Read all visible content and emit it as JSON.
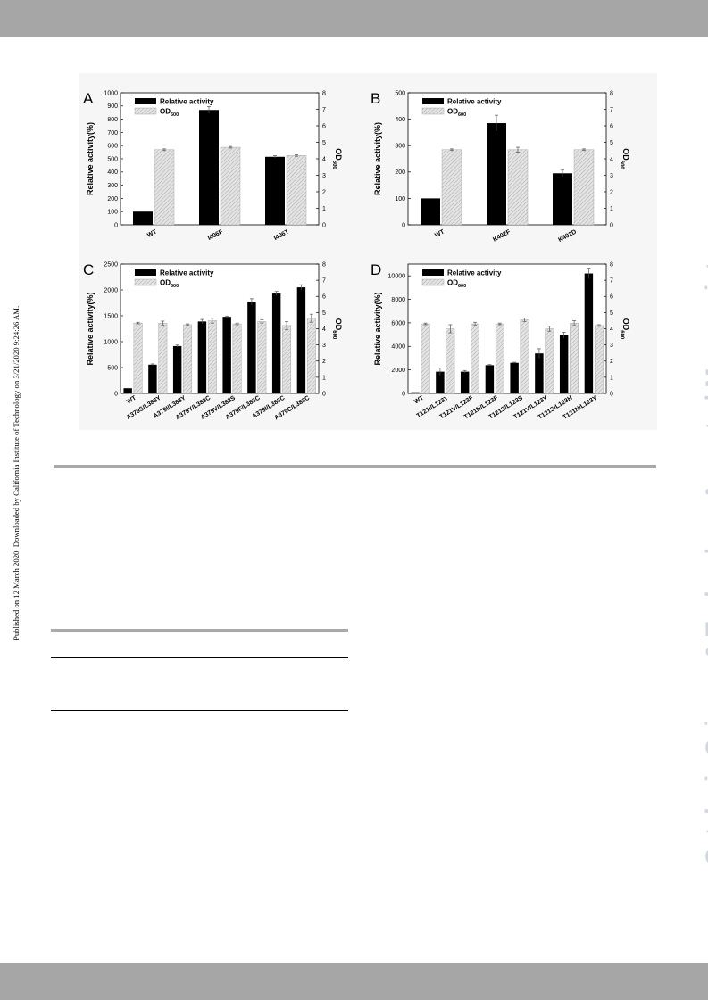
{
  "side_note": "Published on 12 March 2020. Downloaded by California Institute of Technology on 3/21/2020 9:24:26 AM.",
  "watermark": "Catalysis Science & Technology Accepted Manuscript",
  "colors": {
    "bar_primary": "#000000",
    "bar_secondary": "#d9d9d9",
    "page_bars": "#a6a6a6",
    "watermark": "#d3d6dc"
  },
  "chart_data": [
    {
      "panel": "A",
      "type": "bar",
      "categories": [
        "WT",
        "I406F",
        "I406T"
      ],
      "ylabel": "Relative activity(%)",
      "y2label": "OD600",
      "ylim": [
        0,
        1000
      ],
      "yticks": [
        0,
        100,
        200,
        300,
        400,
        500,
        600,
        700,
        800,
        900,
        1000
      ],
      "y2lim": [
        0,
        8
      ],
      "y2ticks": [
        0,
        1,
        2,
        3,
        4,
        5,
        6,
        7,
        8
      ],
      "legend_position": "top-left",
      "series": [
        {
          "name": "Relative activity",
          "axis": "left",
          "values": [
            100,
            870,
            515
          ],
          "errors": [
            0,
            25,
            8
          ]
        },
        {
          "name": "OD600",
          "axis": "right",
          "values": [
            4.55,
            4.7,
            4.2
          ],
          "errors": [
            0.05,
            0.05,
            0.05
          ]
        }
      ]
    },
    {
      "panel": "B",
      "type": "bar",
      "categories": [
        "WT",
        "K402F",
        "K402D"
      ],
      "ylabel": "Relative activity(%)",
      "y2label": "OD600",
      "ylim": [
        0,
        500
      ],
      "yticks": [
        0,
        100,
        200,
        300,
        400,
        500
      ],
      "y2lim": [
        0,
        8
      ],
      "y2ticks": [
        0,
        1,
        2,
        3,
        4,
        5,
        6,
        7,
        8
      ],
      "legend_position": "top-left",
      "series": [
        {
          "name": "Relative activity",
          "axis": "left",
          "values": [
            100,
            385,
            195
          ],
          "errors": [
            0,
            30,
            12
          ]
        },
        {
          "name": "OD600",
          "axis": "right",
          "values": [
            4.55,
            4.55,
            4.55
          ],
          "errors": [
            0.05,
            0.15,
            0.05
          ]
        }
      ]
    },
    {
      "panel": "C",
      "type": "bar",
      "categories": [
        "WT",
        "A379S/L383Y",
        "A379I/L383Y",
        "A379Y/L383C",
        "A379V/L383S",
        "A379F/L383C",
        "A379I/L383C",
        "A379C/L383C"
      ],
      "ylabel": "Relative activity(%)",
      "y2label": "OD600",
      "ylim": [
        0,
        2500
      ],
      "yticks": [
        0,
        500,
        1000,
        1500,
        2000,
        2500
      ],
      "y2lim": [
        0,
        8
      ],
      "y2ticks": [
        0,
        1,
        2,
        3,
        4,
        5,
        6,
        7,
        8
      ],
      "legend_position": "top-left",
      "series": [
        {
          "name": "Relative activity",
          "axis": "left",
          "values": [
            100,
            555,
            915,
            1390,
            1480,
            1770,
            1930,
            2050
          ],
          "errors": [
            0,
            15,
            20,
            40,
            15,
            60,
            40,
            50
          ]
        },
        {
          "name": "OD600",
          "axis": "right",
          "values": [
            4.35,
            4.35,
            4.25,
            4.5,
            4.3,
            4.45,
            4.2,
            4.65
          ],
          "errors": [
            0.05,
            0.12,
            0.05,
            0.15,
            0.05,
            0.1,
            0.25,
            0.25
          ]
        }
      ]
    },
    {
      "panel": "D",
      "type": "bar",
      "categories": [
        "WT",
        "T121I/L123Y",
        "T121V/L123F",
        "T121N/L123F",
        "T121S/L123S",
        "T121V/L123Y",
        "T121S/L123H",
        "T121N/L123Y"
      ],
      "ylabel": "Relative activity(%)",
      "y2label": "OD600",
      "ylim": [
        0,
        11000
      ],
      "yticks": [
        0,
        2000,
        4000,
        6000,
        8000,
        10000
      ],
      "y2lim": [
        0,
        8
      ],
      "y2ticks": [
        0,
        1,
        2,
        3,
        4,
        5,
        6,
        7,
        8
      ],
      "legend_position": "top-left",
      "series": [
        {
          "name": "Relative activity",
          "axis": "left",
          "values": [
            100,
            1850,
            1850,
            2400,
            2600,
            3400,
            4950,
            10200
          ],
          "errors": [
            0,
            300,
            100,
            50,
            50,
            400,
            250,
            450
          ]
        },
        {
          "name": "OD600",
          "axis": "right",
          "values": [
            4.3,
            4.0,
            4.3,
            4.3,
            4.55,
            4.0,
            4.35,
            4.2
          ],
          "errors": [
            0.05,
            0.25,
            0.1,
            0.05,
            0.1,
            0.15,
            0.15,
            0.05
          ]
        }
      ]
    }
  ]
}
